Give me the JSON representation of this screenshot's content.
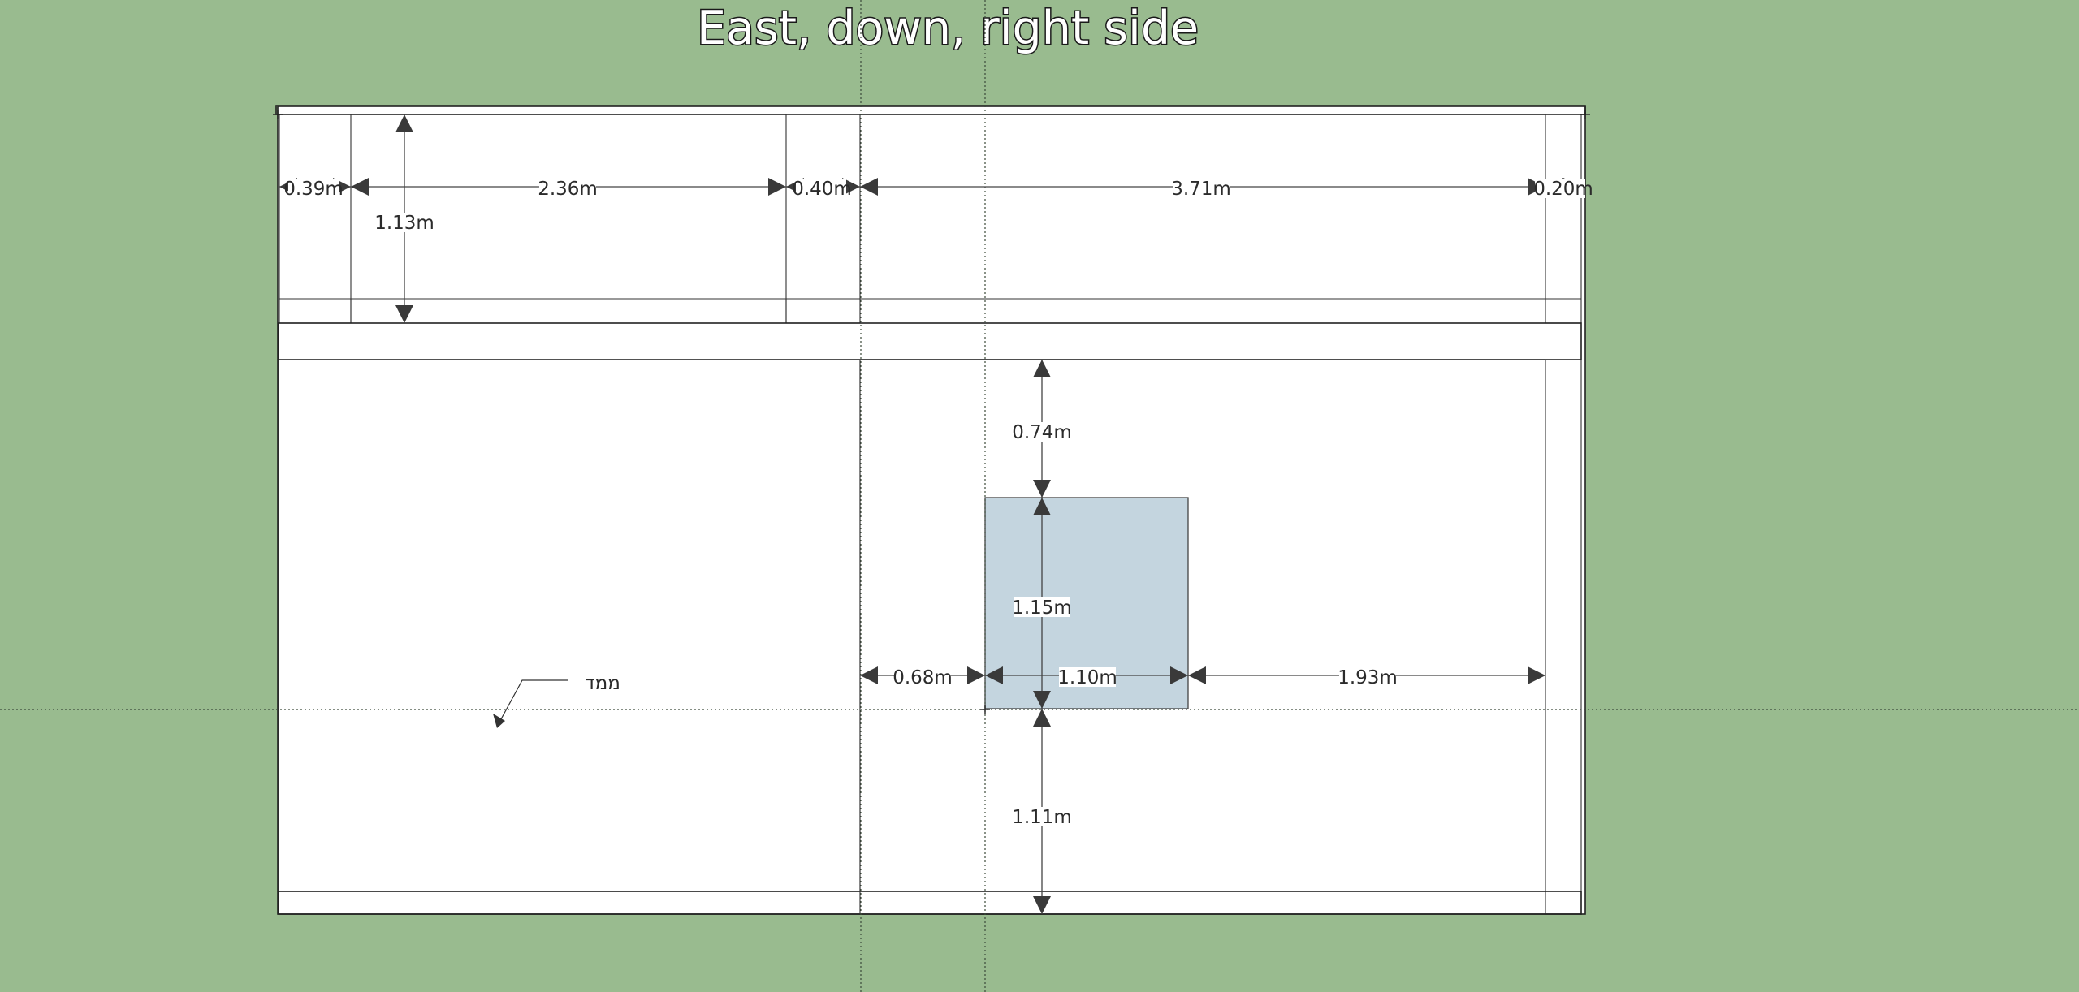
{
  "view": {
    "title": "East, down, right side"
  },
  "dimensions": [
    {
      "id": "dim-0-39",
      "label": "0.39m"
    },
    {
      "id": "dim-2-36",
      "label": "2.36m"
    },
    {
      "id": "dim-0-40",
      "label": "0.40m"
    },
    {
      "id": "dim-3-71",
      "label": "3.71m"
    },
    {
      "id": "dim-0-20",
      "label": "0.20m"
    },
    {
      "id": "dim-1-13",
      "label": "1.13m"
    },
    {
      "id": "dim-0-74",
      "label": "0.74m"
    },
    {
      "id": "dim-1-15",
      "label": "1.15m"
    },
    {
      "id": "dim-0-68",
      "label": "0.68m"
    },
    {
      "id": "dim-1-10",
      "label": "1.10m"
    },
    {
      "id": "dim-1-93",
      "label": "1.93m"
    },
    {
      "id": "dim-1-11",
      "label": "1.11m"
    }
  ],
  "annotations": {
    "room_label": "ממד"
  },
  "colors": {
    "background": "#99bb8f",
    "window_fill": "#c4d5df",
    "hatch": "#b5b5b5",
    "wall_face": "#ffffff"
  }
}
